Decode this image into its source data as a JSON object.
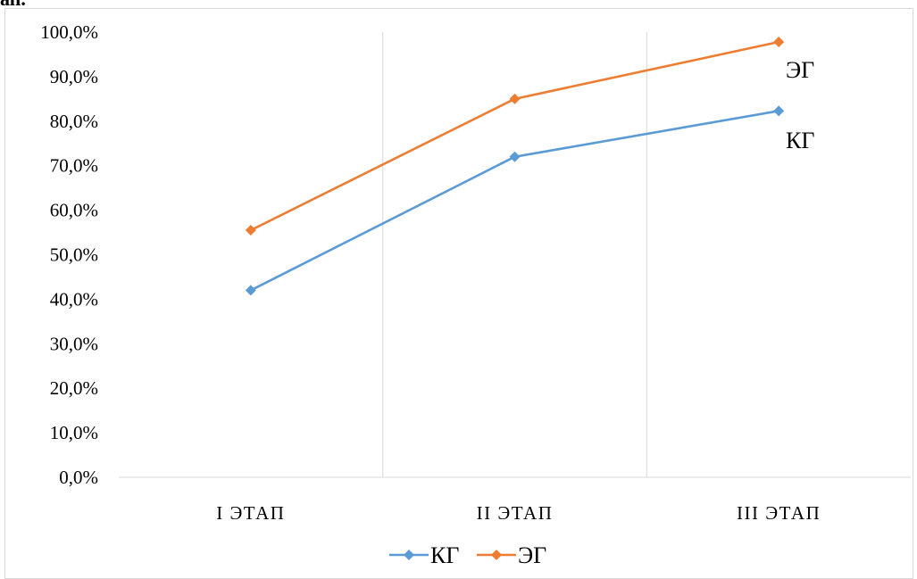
{
  "header_fragment": "ап.",
  "chart_data": {
    "type": "line",
    "categories": [
      "I ЭТАП",
      "II ЭТАП",
      "III ЭТАП"
    ],
    "series": [
      {
        "name": "КГ",
        "values": [
          42.0,
          72.0,
          82.3
        ],
        "color": "#5b9bd5",
        "marker": "diamond"
      },
      {
        "name": "ЭГ",
        "values": [
          55.5,
          85.0,
          97.8
        ],
        "color": "#ed7d31",
        "marker": "diamond"
      }
    ],
    "ylim": [
      0,
      100
    ],
    "yticks": [
      "0,0%",
      "10,0%",
      "20,0%",
      "30,0%",
      "40,0%",
      "50,0%",
      "60,0%",
      "70,0%",
      "80,0%",
      "90,0%",
      "100,0%"
    ],
    "grid": "vertical category separators",
    "legend": "bottom-center",
    "annotations": [
      "ЭГ",
      "КГ"
    ]
  }
}
